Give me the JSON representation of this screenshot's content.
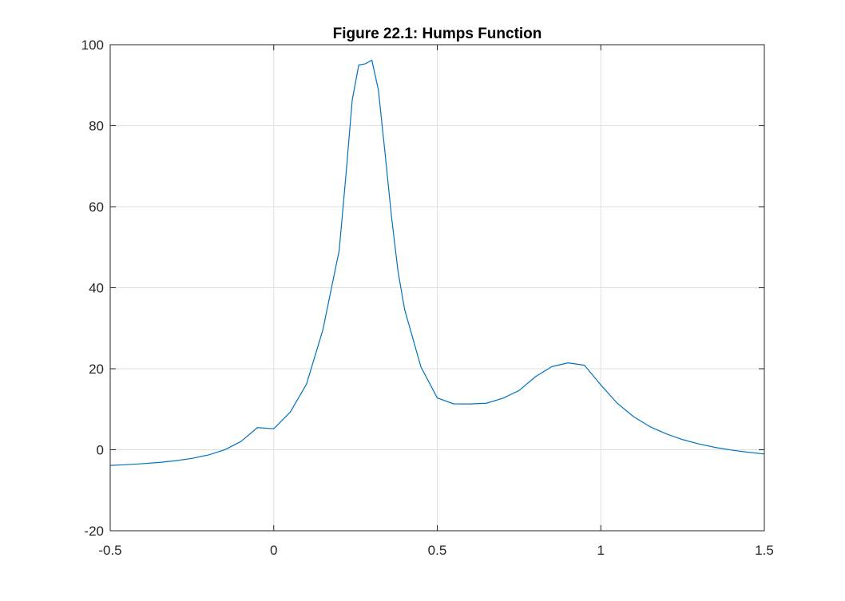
{
  "chart_data": {
    "type": "line",
    "title": "Figure 22.1: Humps Function",
    "xlabel": "",
    "ylabel": "",
    "xlim": [
      -0.5,
      1.5
    ],
    "ylim": [
      -20,
      100
    ],
    "grid": true,
    "xticks": [
      -0.5,
      0,
      0.5,
      1,
      1.5
    ],
    "xtick_labels": [
      "-0.5",
      "0",
      "0.5",
      "1",
      "1.5"
    ],
    "yticks": [
      -20,
      0,
      20,
      40,
      60,
      80,
      100
    ],
    "ytick_labels": [
      "-20",
      "0",
      "20",
      "40",
      "60",
      "80",
      "100"
    ],
    "series": [
      {
        "color": "#0072bd",
        "x": [
          -0.5,
          -0.45,
          -0.4,
          -0.35,
          -0.3,
          -0.25,
          -0.2,
          -0.15,
          -0.1,
          -0.05,
          0,
          0.05,
          0.1,
          0.15,
          0.2,
          0.22,
          0.24,
          0.26,
          0.28,
          0.3,
          0.32,
          0.34,
          0.36,
          0.38,
          0.4,
          0.45,
          0.5,
          0.55,
          0.6,
          0.65,
          0.7,
          0.75,
          0.8,
          0.85,
          0.9,
          0.95,
          1,
          1.05,
          1.1,
          1.15,
          1.2,
          1.25,
          1.3,
          1.35,
          1.4,
          1.45,
          1.5
        ],
        "y": [
          -3.86,
          -3.68,
          -3.44,
          -3.13,
          -2.71,
          -2.13,
          -1.29,
          -0.01,
          2.06,
          5.47,
          5.18,
          9.24,
          16.18,
          29.54,
          49.16,
          67.14,
          86.35,
          95.0,
          95.28,
          96.18,
          88.79,
          73.47,
          57.61,
          44.02,
          34.69,
          20.45,
          12.8,
          11.33,
          11.31,
          11.48,
          12.7,
          14.61,
          18.03,
          20.52,
          21.45,
          20.86,
          16.0,
          11.51,
          8.18,
          5.71,
          3.93,
          2.51,
          1.44,
          0.57,
          -0.09,
          -0.62,
          -1.05
        ]
      }
    ]
  }
}
